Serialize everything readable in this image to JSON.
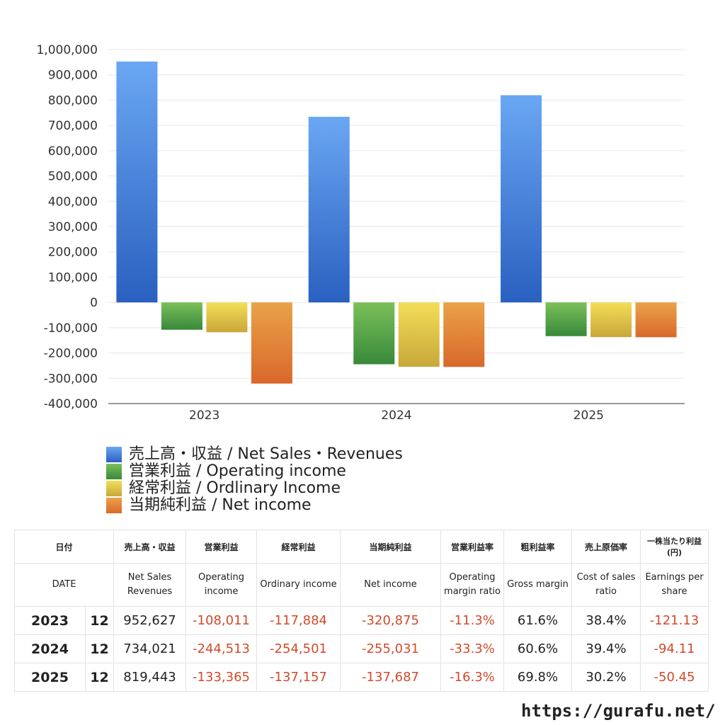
{
  "chart_data": {
    "type": "bar",
    "categories": [
      "2023",
      "2024",
      "2025"
    ],
    "series": [
      {
        "name": "売上高・収益 / Net Sales・Revenues",
        "values": [
          952627,
          734021,
          819443
        ],
        "color": "#3b78d8"
      },
      {
        "name": "営業利益 / Operating income",
        "values": [
          -108011,
          -244513,
          -133365
        ],
        "color": "#4e9a3c"
      },
      {
        "name": "経常利益 / Ordlinary Income",
        "values": [
          -117884,
          -254501,
          -137157
        ],
        "color": "#d9c13e"
      },
      {
        "name": "当期純利益 / Net income",
        "values": [
          -320875,
          -255031,
          -137687
        ],
        "color": "#e07a2e"
      }
    ],
    "ylim": [
      -400000,
      1000000
    ],
    "yticks": [
      "1,000,000",
      "900,000",
      "800,000",
      "700,000",
      "600,000",
      "500,000",
      "400,000",
      "300,000",
      "200,000",
      "100,000",
      "0",
      "-100,000",
      "-200,000",
      "-300,000",
      "-400,000"
    ],
    "grid": true,
    "legend_position": "bottom-left"
  },
  "table": {
    "header_jp": [
      "日付",
      "売上高・収益",
      "営業利益",
      "経常利益",
      "当期純利益",
      "営業利益率",
      "粗利益率",
      "売上原価率",
      "一株当たり利益(円)"
    ],
    "header_en": [
      "DATE",
      "Net Sales Revenues",
      "Operating income",
      "Ordinary income",
      "Net income",
      "Operating margin ratio",
      "Gross margin",
      "Cost of sales ratio",
      "Earnings per share"
    ],
    "rows": [
      {
        "year": "2023",
        "month": "12",
        "cells": [
          "952,627",
          "-108,011",
          "-117,884",
          "-320,875",
          "-11.3%",
          "61.6%",
          "38.4%",
          "-121.13"
        ]
      },
      {
        "year": "2024",
        "month": "12",
        "cells": [
          "734,021",
          "-244,513",
          "-254,501",
          "-255,031",
          "-33.3%",
          "60.6%",
          "39.4%",
          "-94.11"
        ]
      },
      {
        "year": "2025",
        "month": "12",
        "cells": [
          "819,443",
          "-133,365",
          "-137,157",
          "-137,687",
          "-16.3%",
          "69.8%",
          "30.2%",
          "-50.45"
        ]
      }
    ]
  },
  "footer": {
    "url": "https://gurafu.net/"
  }
}
